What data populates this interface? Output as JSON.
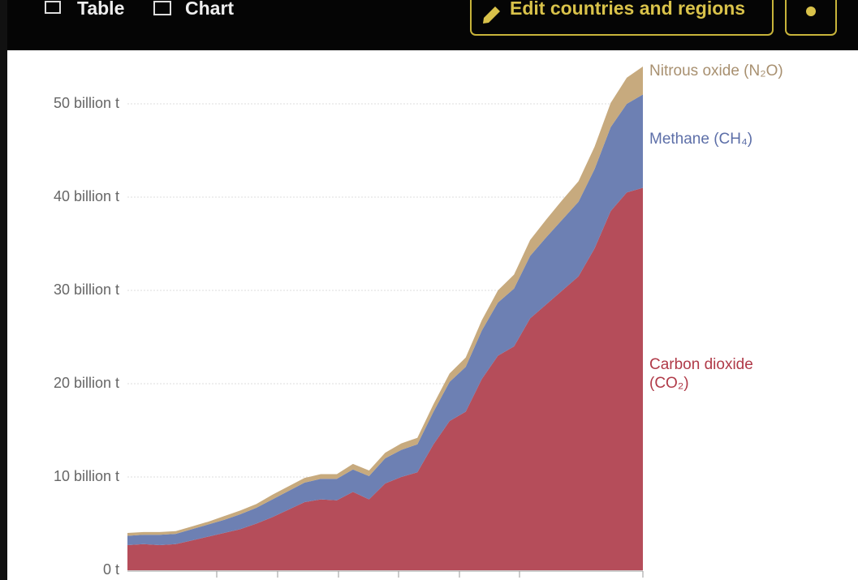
{
  "toolbar": {
    "table": "Table",
    "chart": "Chart",
    "edit": "Edit countries and regions"
  },
  "chart_data": {
    "type": "stacked-area",
    "categories": [
      null,
      null,
      null,
      null,
      null,
      null,
      null,
      null,
      null,
      null,
      null,
      null,
      null,
      null,
      null,
      null,
      null,
      null,
      null,
      null,
      null,
      null,
      null,
      null,
      null,
      null,
      null,
      null,
      null,
      null,
      null,
      null,
      null
    ],
    "series": [
      {
        "name": "Carbon dioxide (CO₂)",
        "color": "#b54d5a",
        "label_color": "#b03a48",
        "values": [
          2.7,
          2.8,
          2.7,
          2.8,
          3.2,
          3.6,
          4.0,
          4.4,
          5.0,
          5.7,
          6.5,
          7.3,
          7.6,
          7.5,
          8.4,
          7.6,
          9.3,
          10.0,
          10.5,
          13.5,
          16.0,
          17.0,
          20.5,
          23.0,
          24.0,
          27.0,
          28.5,
          30.0,
          31.5,
          34.5,
          38.5,
          40.5,
          41.0
        ]
      },
      {
        "name": "Methane (CH₄)",
        "color": "#6d80b3",
        "label_color": "#5d6fa8",
        "values": [
          1.0,
          1.0,
          1.1,
          1.1,
          1.2,
          1.3,
          1.4,
          1.6,
          1.7,
          1.9,
          2.0,
          2.1,
          2.2,
          2.3,
          2.4,
          2.5,
          2.7,
          2.9,
          3.0,
          3.5,
          4.2,
          4.8,
          5.2,
          5.7,
          6.2,
          6.7,
          7.2,
          7.6,
          8.0,
          8.5,
          9.0,
          9.5,
          10.0
        ]
      },
      {
        "name": "Nitrous oxide (N₂O)",
        "color": "#c7aa7e",
        "label_color": "#a89070",
        "values": [
          0.3,
          0.3,
          0.3,
          0.3,
          0.3,
          0.3,
          0.4,
          0.4,
          0.4,
          0.5,
          0.5,
          0.5,
          0.5,
          0.5,
          0.6,
          0.6,
          0.6,
          0.7,
          0.7,
          0.8,
          0.9,
          1.0,
          1.1,
          1.3,
          1.5,
          1.7,
          1.9,
          2.1,
          2.2,
          2.4,
          2.6,
          2.8,
          3.0
        ]
      }
    ],
    "ylim": [
      0,
      55
    ],
    "yticks": [
      {
        "value": 0,
        "label": "0 t"
      },
      {
        "value": 10,
        "label": "10 billion t"
      },
      {
        "value": 20,
        "label": "20 billion t"
      },
      {
        "value": 30,
        "label": "30 billion t"
      },
      {
        "value": 40,
        "label": "40 billion t"
      },
      {
        "value": 50,
        "label": "50 billion t"
      }
    ],
    "grid": true
  }
}
